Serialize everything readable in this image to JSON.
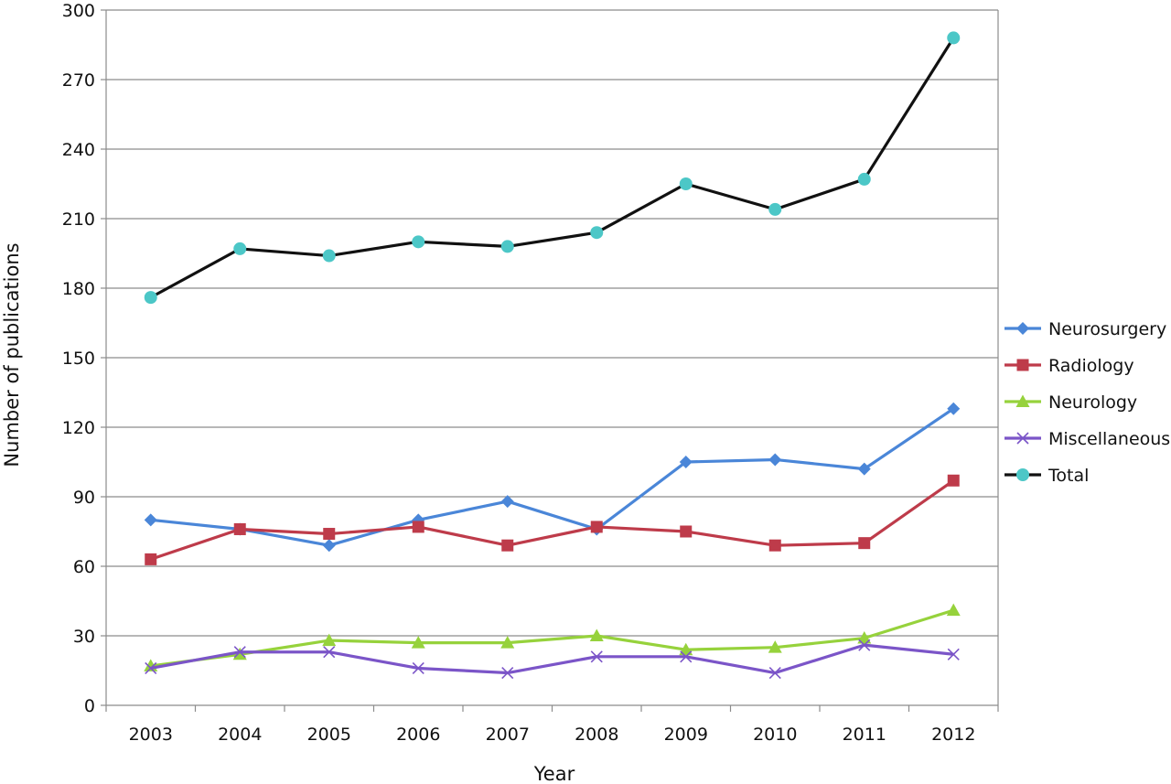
{
  "chart_data": {
    "type": "line",
    "title": "",
    "xlabel": "Year",
    "ylabel": "Number of publications",
    "categories": [
      "2003",
      "2004",
      "2005",
      "2006",
      "2007",
      "2008",
      "2009",
      "2010",
      "2011",
      "2012"
    ],
    "ylim": [
      0,
      300
    ],
    "yticks": [
      0,
      30,
      60,
      90,
      120,
      150,
      180,
      210,
      240,
      270,
      300
    ],
    "grid": "horizontal",
    "legend_position": "right",
    "series": [
      {
        "name": "Neurosurgery",
        "color": "#4a86d8",
        "marker": "diamond",
        "values": [
          80,
          76,
          69,
          80,
          88,
          76,
          105,
          106,
          102,
          128
        ]
      },
      {
        "name": "Radiology",
        "color": "#be3b4a",
        "marker": "square",
        "values": [
          63,
          76,
          74,
          77,
          69,
          77,
          75,
          69,
          70,
          97
        ]
      },
      {
        "name": "Neurology",
        "color": "#96d23c",
        "marker": "triangle",
        "values": [
          17,
          22,
          28,
          27,
          27,
          30,
          24,
          25,
          29,
          41
        ]
      },
      {
        "name": "Miscellaneous",
        "color": "#7b55c8",
        "marker": "x",
        "values": [
          16,
          23,
          23,
          16,
          14,
          21,
          21,
          14,
          26,
          22
        ]
      },
      {
        "name": "Total",
        "color": "#111111",
        "marker": "circle",
        "marker_color": "#4cc7c7",
        "values": [
          176,
          197,
          194,
          200,
          198,
          204,
          225,
          214,
          227,
          288
        ]
      }
    ]
  }
}
